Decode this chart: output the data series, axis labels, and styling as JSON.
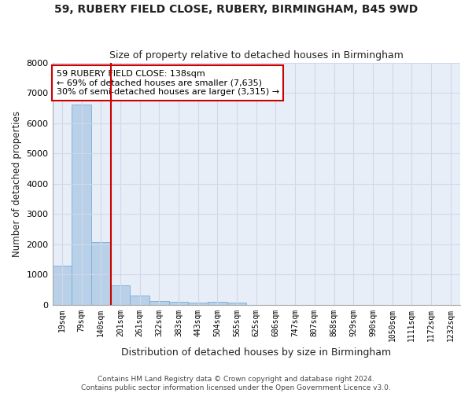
{
  "title_line1": "59, RUBERY FIELD CLOSE, RUBERY, BIRMINGHAM, B45 9WD",
  "title_line2": "Size of property relative to detached houses in Birmingham",
  "xlabel": "Distribution of detached houses by size in Birmingham",
  "ylabel": "Number of detached properties",
  "categories": [
    "19sqm",
    "79sqm",
    "140sqm",
    "201sqm",
    "261sqm",
    "322sqm",
    "383sqm",
    "443sqm",
    "504sqm",
    "565sqm",
    "625sqm",
    "686sqm",
    "747sqm",
    "807sqm",
    "868sqm",
    "929sqm",
    "990sqm",
    "1050sqm",
    "1111sqm",
    "1172sqm",
    "1232sqm"
  ],
  "values": [
    1300,
    6600,
    2080,
    650,
    300,
    130,
    90,
    75,
    100,
    75,
    0,
    0,
    0,
    0,
    0,
    0,
    0,
    0,
    0,
    0,
    0
  ],
  "bar_color": "#b8d0e8",
  "bar_edge_color": "#7aadd4",
  "highlight_line_color": "#cc0000",
  "annotation_text": "59 RUBERY FIELD CLOSE: 138sqm\n← 69% of detached houses are smaller (7,635)\n30% of semi-detached houses are larger (3,315) →",
  "annotation_box_color": "#ffffff",
  "annotation_box_edge_color": "#cc0000",
  "ylim": [
    0,
    8000
  ],
  "yticks": [
    0,
    1000,
    2000,
    3000,
    4000,
    5000,
    6000,
    7000,
    8000
  ],
  "grid_color": "#d0d8e8",
  "background_color": "#e8eef8",
  "footer_text": "Contains HM Land Registry data © Crown copyright and database right 2024.\nContains public sector information licensed under the Open Government Licence v3.0."
}
